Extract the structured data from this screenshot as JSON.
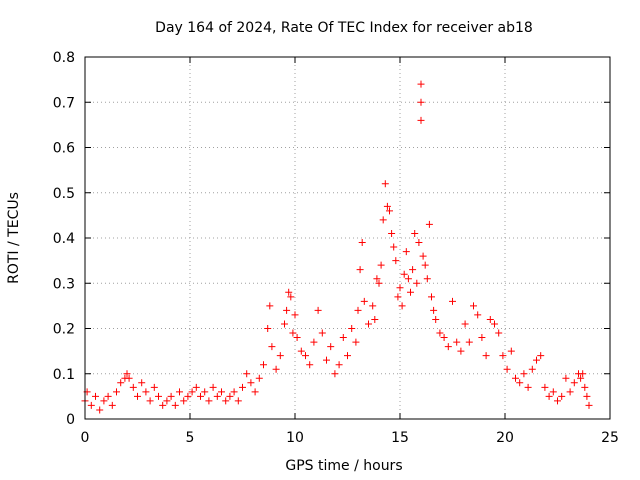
{
  "chart_data": {
    "type": "scatter",
    "title": "Day 164 of 2024, Rate Of TEC Index for receiver ab18",
    "xlabel": "GPS time / hours",
    "ylabel": "ROTI / TECUs",
    "xlim": [
      0,
      25
    ],
    "ylim": [
      0,
      0.8
    ],
    "grid": true,
    "marker": "+",
    "marker_color": "#ff0000",
    "x_ticks": [
      0,
      5,
      10,
      15,
      20,
      25
    ],
    "x_tick_labels": [
      "0",
      "5",
      "10",
      "15",
      "20",
      "25"
    ],
    "y_ticks": [
      0,
      0.1,
      0.2,
      0.3,
      0.4,
      0.5,
      0.6,
      0.7,
      0.8
    ],
    "y_tick_labels": [
      "0",
      "0.1",
      "0.2",
      "0.3",
      "0.4",
      "0.5",
      "0.6",
      "0.7",
      "0.8"
    ],
    "series": [
      {
        "name": "ROTI",
        "points": [
          [
            0.0,
            0.04
          ],
          [
            0.1,
            0.06
          ],
          [
            0.3,
            0.03
          ],
          [
            0.5,
            0.05
          ],
          [
            0.7,
            0.02
          ],
          [
            0.9,
            0.04
          ],
          [
            1.1,
            0.05
          ],
          [
            1.3,
            0.03
          ],
          [
            1.5,
            0.06
          ],
          [
            1.7,
            0.08
          ],
          [
            1.9,
            0.09
          ],
          [
            2.0,
            0.1
          ],
          [
            2.1,
            0.09
          ],
          [
            2.3,
            0.07
          ],
          [
            2.5,
            0.05
          ],
          [
            2.7,
            0.08
          ],
          [
            2.9,
            0.06
          ],
          [
            3.1,
            0.04
          ],
          [
            3.3,
            0.07
          ],
          [
            3.5,
            0.05
          ],
          [
            3.7,
            0.03
          ],
          [
            3.9,
            0.04
          ],
          [
            4.1,
            0.05
          ],
          [
            4.3,
            0.03
          ],
          [
            4.5,
            0.06
          ],
          [
            4.7,
            0.04
          ],
          [
            4.9,
            0.05
          ],
          [
            5.1,
            0.06
          ],
          [
            5.3,
            0.07
          ],
          [
            5.5,
            0.05
          ],
          [
            5.7,
            0.06
          ],
          [
            5.9,
            0.04
          ],
          [
            6.1,
            0.07
          ],
          [
            6.3,
            0.05
          ],
          [
            6.5,
            0.06
          ],
          [
            6.7,
            0.04
          ],
          [
            6.9,
            0.05
          ],
          [
            7.1,
            0.06
          ],
          [
            7.3,
            0.04
          ],
          [
            7.5,
            0.07
          ],
          [
            7.7,
            0.1
          ],
          [
            7.9,
            0.08
          ],
          [
            8.1,
            0.06
          ],
          [
            8.3,
            0.09
          ],
          [
            8.5,
            0.12
          ],
          [
            8.7,
            0.2
          ],
          [
            8.8,
            0.25
          ],
          [
            8.9,
            0.16
          ],
          [
            9.1,
            0.11
          ],
          [
            9.3,
            0.14
          ],
          [
            9.5,
            0.21
          ],
          [
            9.6,
            0.24
          ],
          [
            9.7,
            0.28
          ],
          [
            9.8,
            0.27
          ],
          [
            9.9,
            0.19
          ],
          [
            10.0,
            0.23
          ],
          [
            10.1,
            0.18
          ],
          [
            10.3,
            0.15
          ],
          [
            10.5,
            0.14
          ],
          [
            10.7,
            0.12
          ],
          [
            10.9,
            0.17
          ],
          [
            11.1,
            0.24
          ],
          [
            11.3,
            0.19
          ],
          [
            11.5,
            0.13
          ],
          [
            11.7,
            0.16
          ],
          [
            11.9,
            0.1
          ],
          [
            12.1,
            0.12
          ],
          [
            12.3,
            0.18
          ],
          [
            12.5,
            0.14
          ],
          [
            12.7,
            0.2
          ],
          [
            12.9,
            0.17
          ],
          [
            13.0,
            0.24
          ],
          [
            13.1,
            0.33
          ],
          [
            13.2,
            0.39
          ],
          [
            13.3,
            0.26
          ],
          [
            13.5,
            0.21
          ],
          [
            13.7,
            0.25
          ],
          [
            13.8,
            0.22
          ],
          [
            13.9,
            0.31
          ],
          [
            14.0,
            0.3
          ],
          [
            14.1,
            0.34
          ],
          [
            14.2,
            0.44
          ],
          [
            14.3,
            0.52
          ],
          [
            14.4,
            0.47
          ],
          [
            14.5,
            0.46
          ],
          [
            14.6,
            0.41
          ],
          [
            14.7,
            0.38
          ],
          [
            14.8,
            0.35
          ],
          [
            14.9,
            0.27
          ],
          [
            15.0,
            0.29
          ],
          [
            15.1,
            0.25
          ],
          [
            15.2,
            0.32
          ],
          [
            15.3,
            0.37
          ],
          [
            15.4,
            0.31
          ],
          [
            15.5,
            0.28
          ],
          [
            15.6,
            0.33
          ],
          [
            15.7,
            0.41
          ],
          [
            15.8,
            0.3
          ],
          [
            15.9,
            0.39
          ],
          [
            16.0,
            0.74
          ],
          [
            16.0,
            0.7
          ],
          [
            16.0,
            0.66
          ],
          [
            16.1,
            0.36
          ],
          [
            16.2,
            0.34
          ],
          [
            16.3,
            0.31
          ],
          [
            16.4,
            0.43
          ],
          [
            16.5,
            0.27
          ],
          [
            16.6,
            0.24
          ],
          [
            16.7,
            0.22
          ],
          [
            16.9,
            0.19
          ],
          [
            17.1,
            0.18
          ],
          [
            17.3,
            0.16
          ],
          [
            17.5,
            0.26
          ],
          [
            17.7,
            0.17
          ],
          [
            17.9,
            0.15
          ],
          [
            18.1,
            0.21
          ],
          [
            18.3,
            0.17
          ],
          [
            18.5,
            0.25
          ],
          [
            18.7,
            0.23
          ],
          [
            18.9,
            0.18
          ],
          [
            19.1,
            0.14
          ],
          [
            19.3,
            0.22
          ],
          [
            19.5,
            0.21
          ],
          [
            19.7,
            0.19
          ],
          [
            19.9,
            0.14
          ],
          [
            20.1,
            0.11
          ],
          [
            20.3,
            0.15
          ],
          [
            20.5,
            0.09
          ],
          [
            20.7,
            0.08
          ],
          [
            20.9,
            0.1
          ],
          [
            21.1,
            0.07
          ],
          [
            21.3,
            0.11
          ],
          [
            21.5,
            0.13
          ],
          [
            21.7,
            0.14
          ],
          [
            21.9,
            0.07
          ],
          [
            22.1,
            0.05
          ],
          [
            22.3,
            0.06
          ],
          [
            22.5,
            0.04
          ],
          [
            22.7,
            0.05
          ],
          [
            22.9,
            0.09
          ],
          [
            23.1,
            0.06
          ],
          [
            23.3,
            0.08
          ],
          [
            23.5,
            0.1
          ],
          [
            23.6,
            0.09
          ],
          [
            23.7,
            0.1
          ],
          [
            23.8,
            0.07
          ],
          [
            23.9,
            0.05
          ],
          [
            24.0,
            0.03
          ]
        ]
      }
    ]
  }
}
